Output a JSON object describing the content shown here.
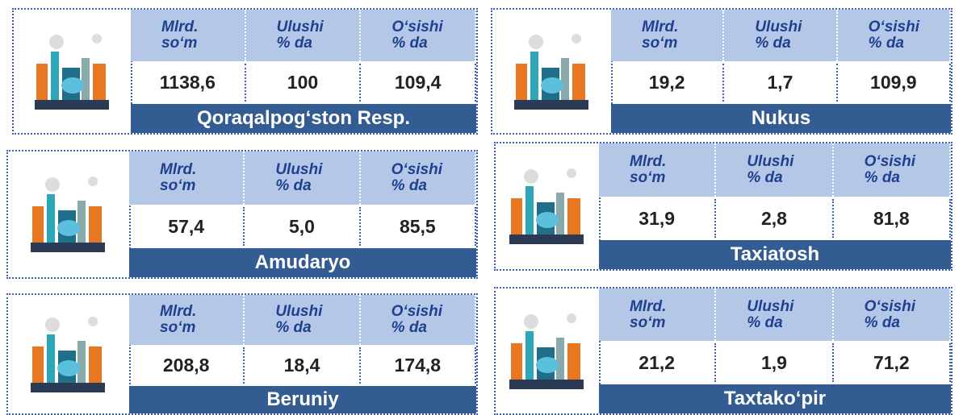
{
  "headers": [
    "Mlrd.\nso‘m",
    "Ulushi\n% da",
    "O‘sishi\n% da"
  ],
  "cards": [
    {
      "name": "Qoraqalpog‘ston Resp.",
      "values": [
        "1138,6",
        "100",
        "109,4"
      ]
    },
    {
      "name": "Nukus",
      "values": [
        "19,2",
        "1,7",
        "109,9"
      ]
    },
    {
      "name": "Amudaryo",
      "values": [
        "57,4",
        "5,0",
        "85,5"
      ]
    },
    {
      "name": "Taxiatosh",
      "values": [
        "31,9",
        "2,8",
        "81,8"
      ]
    },
    {
      "name": "Beruniy",
      "values": [
        "208,8",
        "18,4",
        "174,8"
      ]
    },
    {
      "name": "Taxtako‘pir",
      "values": [
        "21,2",
        "1,9",
        "71,2"
      ]
    }
  ]
}
